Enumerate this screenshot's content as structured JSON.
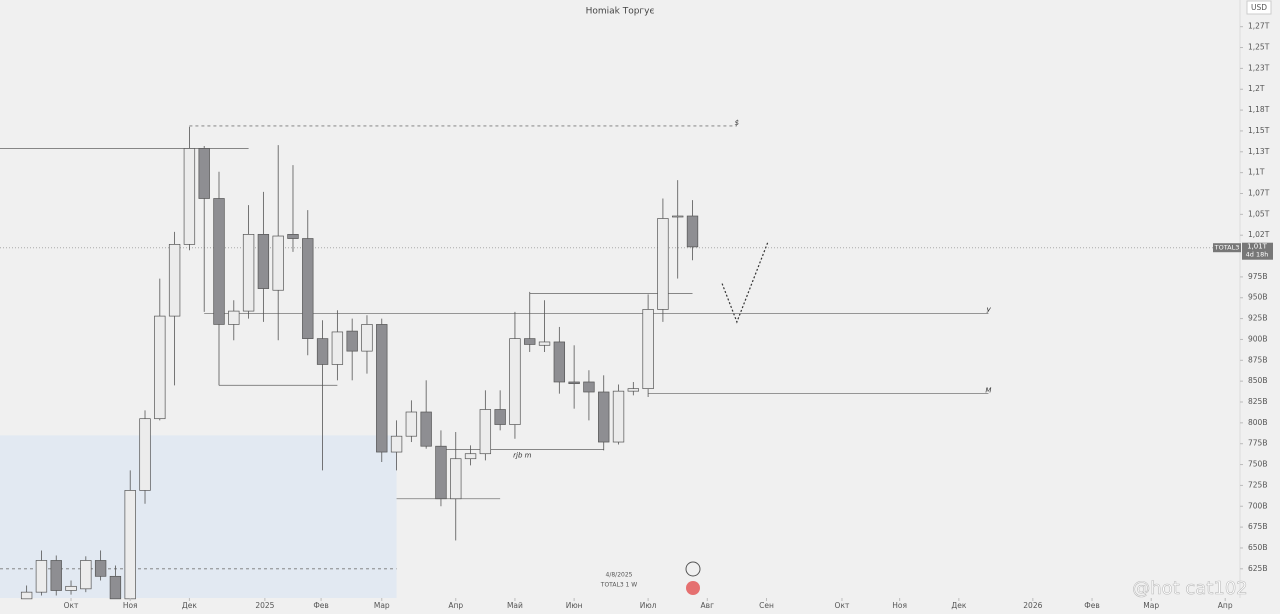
{
  "chart_data": {
    "type": "candlestick",
    "title": "Homiak Торгує",
    "currency": "USD",
    "x": [
      0,
      1,
      2,
      3,
      4,
      5,
      6,
      7,
      8,
      9,
      10,
      11,
      12,
      13,
      14,
      15,
      16,
      17,
      18,
      19,
      20,
      21,
      22,
      23,
      24,
      25,
      26,
      27,
      28,
      29,
      30,
      31,
      32,
      33,
      34,
      35,
      36,
      37,
      38,
      39,
      40,
      41,
      42,
      43,
      44,
      45
    ],
    "open": [
      589,
      597,
      635,
      599,
      601,
      635,
      616,
      589,
      719,
      805,
      928,
      1014,
      1129,
      1069,
      918,
      934,
      1026,
      959,
      1026,
      1021,
      901,
      870,
      910,
      886,
      918,
      765,
      784,
      813,
      772,
      709,
      757,
      763,
      816,
      798,
      901,
      893,
      897,
      849,
      849,
      837,
      777,
      838,
      841,
      936,
      1047,
      1048
    ],
    "high": [
      605,
      647,
      641,
      611,
      640,
      647,
      629,
      743,
      815,
      973,
      1029,
      1155,
      1132,
      1101,
      947,
      1061,
      1077,
      1133,
      1109,
      1055,
      923,
      935,
      925,
      929,
      925,
      803,
      827,
      851,
      791,
      789,
      773,
      839,
      839,
      933,
      957,
      947,
      915,
      893,
      863,
      857,
      846,
      849,
      954,
      1069,
      1091,
      1067
    ],
    "low": [
      589,
      593,
      593,
      594,
      597,
      611,
      589,
      589,
      703,
      803,
      845,
      1007,
      933,
      845,
      899,
      925,
      921,
      899,
      1005,
      881,
      743,
      851,
      851,
      859,
      753,
      743,
      777,
      769,
      700,
      659,
      749,
      755,
      791,
      781,
      885,
      885,
      835,
      817,
      803,
      767,
      774,
      833,
      831,
      921,
      973,
      995
    ],
    "close": [
      597,
      635,
      599,
      604,
      635,
      616,
      589,
      719,
      805,
      928,
      1014,
      1129,
      1069,
      918,
      934,
      1026,
      961,
      1024,
      1021,
      901,
      870,
      909,
      886,
      918,
      765,
      784,
      813,
      772,
      709,
      757,
      763,
      816,
      798,
      901,
      894,
      897,
      849,
      847,
      837,
      777,
      838,
      841,
      936,
      1045,
      1048,
      1011
    ],
    "up_color": "#ececec",
    "down_color": "#8e8e92",
    "xlim": [
      -1.8,
      82
    ],
    "ylim": [
      590,
      1307
    ],
    "xticks": [
      {
        "value": 3,
        "label": "Окт"
      },
      {
        "value": 7,
        "label": "Ноя"
      },
      {
        "value": 11,
        "label": "Дек"
      },
      {
        "value": 16.1,
        "label": "2025"
      },
      {
        "value": 19.9,
        "label": "Фев"
      },
      {
        "value": 24,
        "label": "Мар"
      },
      {
        "value": 29,
        "label": "Апр"
      },
      {
        "value": 33,
        "label": "Май"
      },
      {
        "value": 37,
        "label": "Июн"
      },
      {
        "value": 42,
        "label": "Июл"
      },
      {
        "value": 46,
        "label": "Авг"
      },
      {
        "value": 50,
        "label": "Сен"
      },
      {
        "value": 55.1,
        "label": "Окт"
      },
      {
        "value": 59,
        "label": "Ноя"
      },
      {
        "value": 63,
        "label": "Дек"
      },
      {
        "value": 68,
        "label": "2026"
      },
      {
        "value": 72,
        "label": "Фев"
      },
      {
        "value": 76,
        "label": "Мар"
      },
      {
        "value": 81,
        "label": "Апр"
      }
    ],
    "yticks": [
      {
        "value": 1275,
        "label": "1,27T"
      },
      {
        "value": 1250,
        "label": "1,25T"
      },
      {
        "value": 1225,
        "label": "1,23T"
      },
      {
        "value": 1200,
        "label": "1,2T"
      },
      {
        "value": 1175,
        "label": "1,18T"
      },
      {
        "value": 1150,
        "label": "1,15T"
      },
      {
        "value": 1125,
        "label": "1,13T"
      },
      {
        "value": 1100,
        "label": "1,1T"
      },
      {
        "value": 1075,
        "label": "1,07T"
      },
      {
        "value": 1050,
        "label": "1,05T"
      },
      {
        "value": 1025,
        "label": "1,02T"
      },
      {
        "value": 975,
        "label": "975B"
      },
      {
        "value": 950,
        "label": "950B"
      },
      {
        "value": 925,
        "label": "925B"
      },
      {
        "value": 900,
        "label": "900B"
      },
      {
        "value": 875,
        "label": "875B"
      },
      {
        "value": 850,
        "label": "850B"
      },
      {
        "value": 825,
        "label": "825B"
      },
      {
        "value": 800,
        "label": "800B"
      },
      {
        "value": 775,
        "label": "775B"
      },
      {
        "value": 750,
        "label": "750B"
      },
      {
        "value": 725,
        "label": "725B"
      },
      {
        "value": 700,
        "label": "700B"
      },
      {
        "value": 675,
        "label": "675B"
      },
      {
        "value": 650,
        "label": "650B"
      },
      {
        "value": 625,
        "label": "625B"
      }
    ],
    "last": {
      "value": 1010,
      "label": "1,01T",
      "symbol": "TOTAL3",
      "countdown": "4d 18h"
    },
    "zone": {
      "top": 785,
      "from": -1.8,
      "to": 25,
      "color": "#dfe7f3"
    },
    "levels": [
      {
        "price": 1129,
        "from": -1.8,
        "to": 15,
        "style": "solid"
      },
      {
        "price": 1156,
        "from": 11,
        "to": 48,
        "style": "dashed",
        "label": "$"
      },
      {
        "price": 931,
        "from": 12,
        "to": 65,
        "style": "solid",
        "label": "У"
      },
      {
        "price": 835,
        "from": 42,
        "to": 65,
        "style": "solid",
        "label": "М"
      },
      {
        "price": 845,
        "from": 13,
        "to": 21,
        "style": "solid"
      },
      {
        "price": 955,
        "from": 34,
        "to": 45,
        "style": "solid"
      },
      {
        "price": 768,
        "from": 28,
        "to": 39,
        "style": "solid",
        "label": "rjb m"
      },
      {
        "price": 709,
        "from": 25,
        "to": 32,
        "style": "solid"
      },
      {
        "price": 625,
        "from": -1.8,
        "to": 25,
        "style": "dashed"
      }
    ],
    "projection": {
      "x": [
        47,
        48,
        50.1
      ],
      "y": [
        967,
        921,
        1017
      ]
    },
    "date": "4/8/2025",
    "interval": "TOTAL3 1 W",
    "watermark": "@hot cat102"
  }
}
